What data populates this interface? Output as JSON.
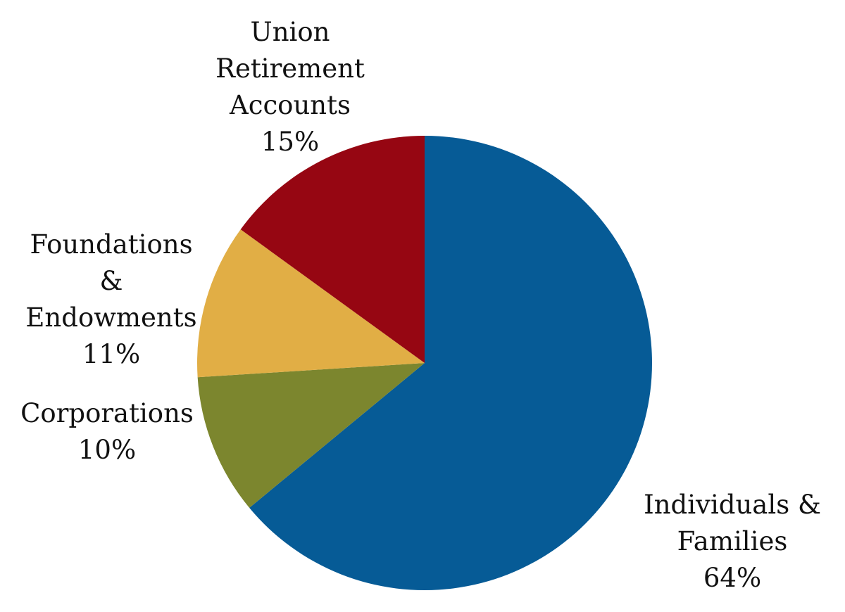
{
  "chart_data": {
    "type": "pie",
    "title": "",
    "slices": [
      {
        "label_lines": [
          "Individuals &",
          "Families"
        ],
        "value": 64,
        "value_label": "64%",
        "color": "#065B96"
      },
      {
        "label_lines": [
          "Corporations"
        ],
        "value": 10,
        "value_label": "10%",
        "color": "#7C862E"
      },
      {
        "label_lines": [
          "Foundations",
          "&",
          "Endowments"
        ],
        "value": 11,
        "value_label": "11%",
        "color": "#E1AE45"
      },
      {
        "label_lines": [
          "Union",
          "Retirement",
          "Accounts"
        ],
        "value": 15,
        "value_label": "15%",
        "color": "#960612"
      }
    ],
    "start_angle": "12 o'clock",
    "direction": "clockwise",
    "legend": "none"
  }
}
